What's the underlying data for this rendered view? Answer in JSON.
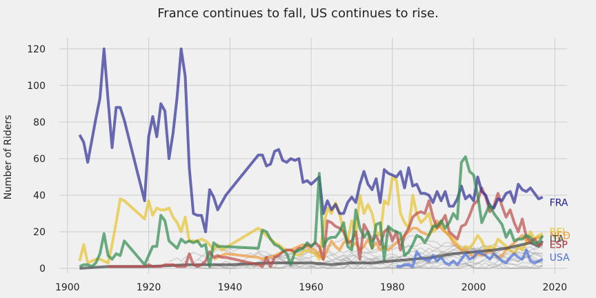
{
  "chart_data": {
    "type": "line",
    "title": "France continues to fall, US continues to rise.",
    "xlabel": "",
    "ylabel": "Number of Riders",
    "xlim": [
      1898,
      2023
    ],
    "ylim": [
      -3,
      126
    ],
    "x_ticks": [
      1900,
      1920,
      1940,
      1960,
      1980,
      2000,
      2020
    ],
    "y_ticks": [
      0,
      20,
      40,
      60,
      80,
      100,
      120
    ],
    "grid": true,
    "legend": "inline labels at right end of highlighted series",
    "series": [
      {
        "name": "BEL",
        "color": "#e5c22f",
        "x": [
          1903,
          1904,
          1905,
          1906,
          1907,
          1908,
          1909,
          1910,
          1911,
          1912,
          1913,
          1914,
          1919,
          1920,
          1921,
          1922,
          1923,
          1924,
          1925,
          1926,
          1927,
          1928,
          1929,
          1930,
          1931,
          1932,
          1933,
          1934,
          1935,
          1936,
          1937,
          1938,
          1947,
          1948,
          1949,
          1950,
          1951,
          1952,
          1953,
          1954,
          1955,
          1956,
          1957,
          1958,
          1959,
          1960,
          1961,
          1962,
          1963,
          1964,
          1965,
          1966,
          1967,
          1968,
          1969,
          1970,
          1971,
          1972,
          1973,
          1974,
          1975,
          1976,
          1977,
          1978,
          1979,
          1980,
          1981,
          1982,
          1983,
          1984,
          1985,
          1986,
          1987,
          1988,
          1989,
          1990,
          1991,
          1992,
          1993,
          1994,
          1995,
          1996,
          1997,
          1998,
          1999,
          2000,
          2001,
          2002,
          2003,
          2004,
          2005,
          2006,
          2007,
          2008,
          2009,
          2010,
          2011,
          2012,
          2013,
          2014,
          2015,
          2016,
          2017
        ],
        "values": [
          4,
          13,
          3,
          4,
          5,
          5,
          4,
          3,
          13,
          25,
          38,
          37,
          27,
          37,
          29,
          33,
          32,
          32,
          33,
          28,
          25,
          20,
          28,
          15,
          15,
          15,
          16,
          15,
          13,
          10,
          13,
          10,
          22,
          20,
          18,
          16,
          14,
          13,
          11,
          10,
          10,
          8,
          7,
          9,
          10,
          9,
          8,
          5,
          22,
          33,
          30,
          36,
          30,
          20,
          15,
          26,
          18,
          40,
          30,
          35,
          30,
          20,
          18,
          37,
          35,
          50,
          48,
          30,
          25,
          22,
          40,
          30,
          25,
          27,
          30,
          20,
          22,
          24,
          20,
          18,
          16,
          13,
          10,
          12,
          11,
          14,
          18,
          15,
          10,
          12,
          11,
          16,
          14,
          12,
          10,
          8,
          12,
          10,
          14,
          20,
          16,
          18,
          19
        ]
      },
      {
        "name": "NED",
        "color": "#ec9a3f",
        "x": [
          1936,
          1937,
          1938,
          1939,
          1947,
          1948,
          1949,
          1950,
          1951,
          1952,
          1953,
          1954,
          1955,
          1956,
          1957,
          1958,
          1959,
          1960,
          1961,
          1962,
          1963,
          1964,
          1965,
          1966,
          1967,
          1968,
          1969,
          1970,
          1971,
          1972,
          1973,
          1974,
          1975,
          1976,
          1977,
          1978,
          1979,
          1980,
          1981,
          1982,
          1983,
          1984,
          1985,
          1986,
          1987,
          1988,
          1989,
          1990,
          1991,
          1992,
          1993,
          1994,
          1995,
          1996,
          1997,
          1998,
          1999,
          2000,
          2001,
          2002,
          2003,
          2004,
          2005,
          2006,
          2007,
          2008,
          2009,
          2010,
          2011,
          2012,
          2013,
          2014,
          2015,
          2016,
          2017
        ],
        "values": [
          5,
          6,
          7,
          8,
          6,
          5,
          6,
          6,
          7,
          8,
          9,
          10,
          10,
          11,
          12,
          13,
          12,
          11,
          10,
          7,
          5,
          10,
          15,
          12,
          10,
          14,
          16,
          12,
          14,
          10,
          12,
          16,
          11,
          14,
          10,
          12,
          10,
          12,
          14,
          16,
          18,
          20,
          22,
          22,
          20,
          19,
          18,
          22,
          26,
          22,
          20,
          18,
          14,
          12,
          10,
          10,
          8,
          6,
          8,
          7,
          8,
          10,
          8,
          6,
          7,
          10,
          12,
          14,
          16,
          18,
          15,
          14,
          16,
          17,
          17
        ]
      },
      {
        "name": "ITA",
        "color": "#444444",
        "x": [
          1903,
          1910,
          1920,
          1930,
          1940,
          1950,
          1955,
          1960,
          1965,
          1970,
          1975,
          1980,
          1985,
          1990,
          1995,
          2000,
          2005,
          2008,
          2010,
          2012,
          2014,
          2015,
          2016,
          2017
        ],
        "values": [
          0,
          1,
          1,
          2,
          2,
          3,
          3,
          3,
          2,
          3,
          3,
          4,
          5,
          6,
          8,
          9,
          10,
          11,
          12,
          13,
          14,
          13,
          12,
          15
        ]
      },
      {
        "name": "ESP",
        "color": "#b94b48",
        "x": [
          1910,
          1911,
          1912,
          1913,
          1914,
          1919,
          1920,
          1921,
          1922,
          1923,
          1924,
          1925,
          1926,
          1927,
          1928,
          1929,
          1930,
          1931,
          1932,
          1933,
          1934,
          1935,
          1936,
          1937,
          1938,
          1939,
          1947,
          1948,
          1949,
          1950,
          1951,
          1952,
          1953,
          1954,
          1955,
          1956,
          1957,
          1958,
          1959,
          1960,
          1961,
          1962,
          1963,
          1964,
          1965,
          1966,
          1967,
          1968,
          1969,
          1970,
          1971,
          1972,
          1973,
          1974,
          1975,
          1976,
          1977,
          1978,
          1979,
          1980,
          1981,
          1982,
          1983,
          1984,
          1985,
          1986,
          1987,
          1988,
          1989,
          1990,
          1991,
          1992,
          1993,
          1994,
          1995,
          1996,
          1997,
          1998,
          1999,
          2000,
          2001,
          2002,
          2003,
          2004,
          2005,
          2006,
          2007,
          2008,
          2009,
          2010,
          2011,
          2012,
          2013,
          2014,
          2015,
          2016,
          2017
        ],
        "values": [
          1,
          1,
          1,
          1,
          1,
          1,
          2,
          1,
          1,
          1,
          2,
          2,
          2,
          1,
          1,
          1,
          8,
          2,
          1,
          2,
          4,
          9,
          6,
          7,
          6,
          6,
          2,
          1,
          6,
          1,
          6,
          7,
          9,
          10,
          10,
          9,
          11,
          11,
          13,
          12,
          14,
          12,
          5,
          26,
          25,
          23,
          22,
          20,
          14,
          15,
          20,
          5,
          24,
          20,
          15,
          18,
          13,
          20,
          22,
          15,
          20,
          10,
          18,
          22,
          28,
          30,
          31,
          30,
          37,
          28,
          22,
          25,
          29,
          20,
          18,
          16,
          23,
          24,
          29,
          35,
          37,
          44,
          39,
          31,
          34,
          41,
          34,
          28,
          32,
          25,
          20,
          27,
          17,
          15,
          16,
          13,
          13
        ]
      },
      {
        "name": "USA",
        "color": "#4d6fd6",
        "x": [
          1981,
          1982,
          1983,
          1984,
          1985,
          1986,
          1987,
          1988,
          1989,
          1990,
          1991,
          1992,
          1993,
          1994,
          1995,
          1996,
          1997,
          1998,
          1999,
          2000,
          2001,
          2002,
          2003,
          2004,
          2005,
          2006,
          2007,
          2008,
          2009,
          2010,
          2011,
          2012,
          2013,
          2014,
          2015,
          2016,
          2017
        ],
        "values": [
          1,
          1,
          2,
          2,
          1,
          9,
          6,
          5,
          4,
          7,
          4,
          6,
          3,
          2,
          4,
          2,
          5,
          8,
          5,
          6,
          9,
          8,
          7,
          5,
          8,
          6,
          4,
          3,
          6,
          8,
          6,
          5,
          10,
          4,
          3,
          4,
          5
        ]
      },
      {
        "name": "FRA",
        "color": "#2e2e96",
        "x": [
          1903,
          1904,
          1905,
          1906,
          1907,
          1908,
          1909,
          1910,
          1911,
          1912,
          1913,
          1914,
          1919,
          1920,
          1921,
          1922,
          1923,
          1924,
          1925,
          1926,
          1927,
          1928,
          1929,
          1930,
          1931,
          1932,
          1933,
          1934,
          1935,
          1936,
          1937,
          1938,
          1939,
          1947,
          1948,
          1949,
          1950,
          1951,
          1952,
          1953,
          1954,
          1955,
          1956,
          1957,
          1958,
          1959,
          1960,
          1961,
          1962,
          1963,
          1964,
          1965,
          1966,
          1967,
          1968,
          1969,
          1970,
          1971,
          1972,
          1973,
          1974,
          1975,
          1976,
          1977,
          1978,
          1979,
          1980,
          1981,
          1982,
          1983,
          1984,
          1985,
          1986,
          1987,
          1988,
          1989,
          1990,
          1991,
          1992,
          1993,
          1994,
          1995,
          1996,
          1997,
          1998,
          1999,
          2000,
          2001,
          2002,
          2003,
          2004,
          2005,
          2006,
          2007,
          2008,
          2009,
          2010,
          2011,
          2012,
          2013,
          2014,
          2015,
          2016,
          2017
        ],
        "values": [
          73,
          69,
          58,
          70,
          82,
          93,
          120,
          92,
          66,
          88,
          88,
          81,
          37,
          72,
          83,
          72,
          90,
          86,
          60,
          74,
          94,
          120,
          105,
          55,
          30,
          29,
          29,
          20,
          43,
          39,
          32,
          36,
          40,
          62,
          62,
          56,
          57,
          64,
          65,
          59,
          58,
          60,
          59,
          60,
          47,
          48,
          46,
          48,
          50,
          30,
          37,
          32,
          35,
          30,
          30,
          36,
          39,
          36,
          46,
          53,
          46,
          43,
          49,
          36,
          54,
          52,
          51,
          50,
          53,
          44,
          55,
          45,
          46,
          41,
          41,
          40,
          36,
          42,
          37,
          42,
          34,
          34,
          38,
          45,
          38,
          40,
          37,
          50,
          42,
          40,
          34,
          33,
          38,
          37,
          41,
          42,
          36,
          46,
          43,
          42,
          44,
          41,
          38,
          39
        ]
      },
      {
        "name": "",
        "color": "#2f8a4e",
        "x": [
          1903,
          1904,
          1905,
          1906,
          1907,
          1908,
          1909,
          1910,
          1911,
          1912,
          1913,
          1914,
          1919,
          1920,
          1921,
          1922,
          1923,
          1924,
          1925,
          1926,
          1927,
          1928,
          1929,
          1930,
          1931,
          1932,
          1933,
          1934,
          1935,
          1936,
          1937,
          1938,
          1947,
          1948,
          1949,
          1950,
          1951,
          1952,
          1953,
          1954,
          1955,
          1956,
          1957,
          1958,
          1959,
          1960,
          1961,
          1962,
          1963,
          1964,
          1965,
          1966,
          1967,
          1968,
          1969,
          1970,
          1971,
          1972,
          1973,
          1974,
          1975,
          1976,
          1977,
          1978,
          1979,
          1980,
          1981,
          1982,
          1983,
          1984,
          1985,
          1986,
          1987,
          1988,
          1989,
          1990,
          1991,
          1992,
          1993,
          1994,
          1995,
          1996,
          1997,
          1998,
          1999,
          2000,
          2001,
          2002,
          2003,
          2004,
          2005,
          2006,
          2007,
          2008,
          2009,
          2010,
          2011,
          2012,
          2013,
          2014,
          2015,
          2016,
          2017
        ],
        "values": [
          1,
          2,
          2,
          1,
          3,
          8,
          19,
          7,
          5,
          8,
          7,
          15,
          2,
          7,
          12,
          12,
          29,
          26,
          15,
          13,
          11,
          16,
          14,
          15,
          14,
          15,
          12,
          13,
          1,
          14,
          12,
          12,
          11,
          21,
          20,
          16,
          13,
          12,
          10,
          8,
          2,
          9,
          10,
          11,
          14,
          12,
          14,
          52,
          12,
          16,
          17,
          17,
          20,
          25,
          12,
          10,
          32,
          22,
          17,
          20,
          11,
          24,
          25,
          5,
          23,
          21,
          20,
          19,
          7,
          9,
          13,
          18,
          17,
          14,
          18,
          23,
          23,
          26,
          22,
          25,
          30,
          27,
          58,
          61,
          53,
          51,
          40,
          25,
          30,
          35,
          30,
          27,
          24,
          17,
          21,
          15,
          16,
          16,
          18,
          17,
          14,
          14,
          18
        ]
      }
    ],
    "labels": [
      {
        "text": "FRA",
        "color": "#1a1a8c",
        "y": 36
      },
      {
        "text": "BEL",
        "color": "#e8c030",
        "y": 20
      },
      {
        "text": "NED",
        "color": "#ec9a3f",
        "y": 18
      },
      {
        "text": "ITA",
        "color": "#444444",
        "y": 16
      },
      {
        "text": "ESP",
        "color": "#a52a2a",
        "y": 13
      },
      {
        "text": "USA",
        "color": "#4d6fd6",
        "y": 6
      }
    ]
  }
}
